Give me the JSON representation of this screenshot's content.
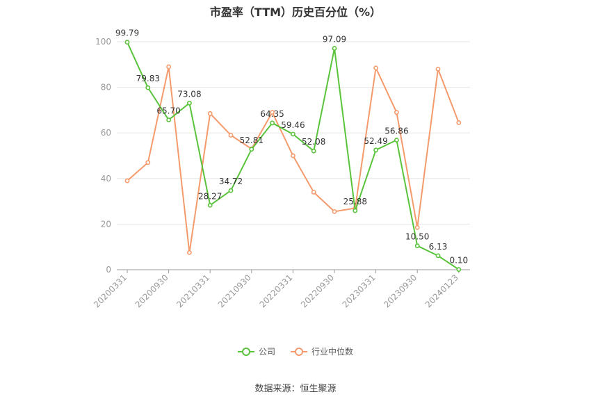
{
  "chart_data": {
    "type": "line",
    "title": "市盈率（TTM）历史百分位（%）",
    "x_tick_labels": [
      "20200331",
      "20200930",
      "20210331",
      "20210930",
      "20220331",
      "20220930",
      "20230331",
      "20230930",
      "20240123"
    ],
    "ylim": [
      0,
      100
    ],
    "y_ticks": [
      0,
      20,
      40,
      60,
      80,
      100
    ],
    "grid": true,
    "legend_position": "bottom",
    "series": [
      {
        "name": "公司",
        "color": "#5ac33c",
        "values": [
          99.79,
          79.83,
          65.7,
          73.08,
          28.27,
          34.72,
          52.81,
          64.35,
          59.46,
          52.08,
          97.09,
          25.88,
          52.49,
          56.86,
          10.5,
          6.13,
          0.1
        ],
        "labels": [
          "99.79",
          "79.83",
          "65.70",
          "73.08",
          "28.27",
          "34.72",
          "52.81",
          "64.35",
          "59.46",
          "52.08",
          "97.09",
          "25.88",
          "52.49",
          "56.86",
          "10.50",
          "6.13",
          "0.10"
        ]
      },
      {
        "name": "行业中位数",
        "color": "#f59a6c",
        "values": [
          39,
          47,
          89,
          7.5,
          68.5,
          59,
          53,
          69,
          50,
          34,
          25.5,
          27,
          88.5,
          69,
          18.5,
          88,
          64.5
        ]
      }
    ]
  },
  "source": "数据来源：恒生聚源"
}
